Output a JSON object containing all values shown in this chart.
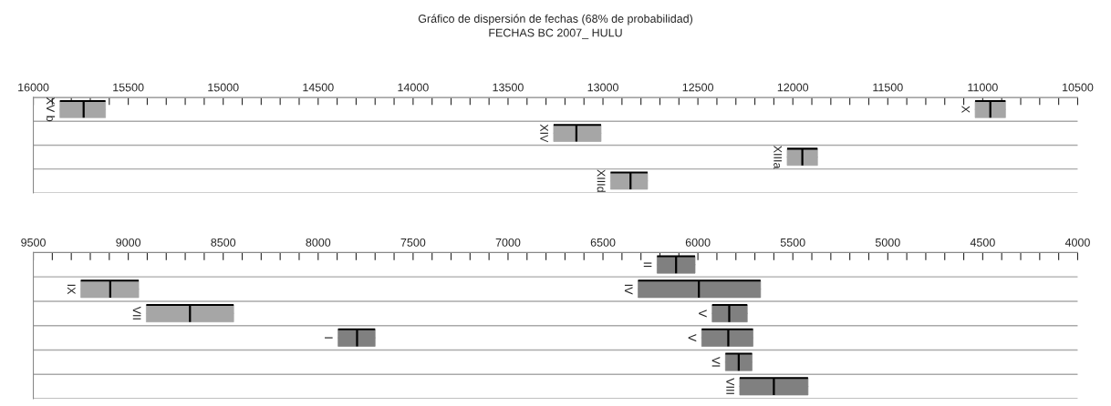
{
  "chart_data": [
    {
      "type": "box",
      "orientation": "horizontal",
      "title": "Gráfico de dispersión de fechas (68% de probabilidad)",
      "subtitle": "FECHAS BC 2007_ HULU",
      "categories": [
        null,
        null,
        null,
        null
      ],
      "series": [
        {
          "colors": [
            "#a6a6a6",
            "#a6a6a6",
            "#a6a6a6",
            "#a6a6a6"
          ],
          "value_labels": [
            "XV b",
            "XIV",
            "XIIIa",
            "XIIId"
          ],
          "boxes": [
            {
              "low": 15620,
              "q1": 15620,
              "median": 15735,
              "q3": 15860,
              "high": 15860
            },
            {
              "low": 13010,
              "q1": 13010,
              "median": 13140,
              "q3": 13260,
              "high": 13260
            },
            {
              "low": 11870,
              "q1": 11870,
              "median": 11950,
              "q3": 12030,
              "high": 12030
            },
            {
              "low": 12765,
              "q1": 12765,
              "median": 12855,
              "q3": 12960,
              "high": 12960
            }
          ]
        },
        {
          "colors": [
            "#a6a6a6",
            null,
            null,
            null
          ],
          "value_labels": [
            "X",
            null,
            null,
            null
          ],
          "boxes": [
            {
              "low": 10880,
              "q1": 10880,
              "median": 10960,
              "q3": 11040,
              "high": 11040
            },
            null,
            null,
            null
          ]
        }
      ],
      "xlim": [
        16000,
        10500
      ],
      "xticks": [
        16000,
        {
          "value": 15900,
          "label": null
        },
        {
          "value": 15800,
          "label": null
        },
        {
          "value": 15700,
          "label": null
        },
        {
          "value": 15600,
          "label": null
        },
        15500,
        {
          "value": 15400,
          "label": null
        },
        {
          "value": 15300,
          "label": null
        },
        {
          "value": 15200,
          "label": null
        },
        {
          "value": 15100,
          "label": null
        },
        15000,
        {
          "value": 14900,
          "label": null
        },
        {
          "value": 14800,
          "label": null
        },
        {
          "value": 14700,
          "label": null
        },
        {
          "value": 14600,
          "label": null
        },
        14500,
        {
          "value": 14400,
          "label": null
        },
        {
          "value": 14300,
          "label": null
        },
        {
          "value": 14200,
          "label": null
        },
        {
          "value": 14100,
          "label": null
        },
        14000,
        {
          "value": 13900,
          "label": null
        },
        {
          "value": 13800,
          "label": null
        },
        {
          "value": 13700,
          "label": null
        },
        {
          "value": 13600,
          "label": null
        },
        13500,
        {
          "value": 13400,
          "label": null
        },
        {
          "value": 13300,
          "label": null
        },
        {
          "value": 13200,
          "label": null
        },
        {
          "value": 13100,
          "label": null
        },
        13000,
        {
          "value": 12900,
          "label": null
        },
        {
          "value": 12800,
          "label": null
        },
        {
          "value": 12700,
          "label": null
        },
        {
          "value": 12600,
          "label": null
        },
        12500,
        {
          "value": 12400,
          "label": null
        },
        {
          "value": 12300,
          "label": null
        },
        {
          "value": 12200,
          "label": null
        },
        {
          "value": 12100,
          "label": null
        },
        12000,
        {
          "value": 11900,
          "label": null
        },
        {
          "value": 11800,
          "label": null
        },
        {
          "value": 11700,
          "label": null
        },
        {
          "value": 11600,
          "label": null
        },
        11500,
        {
          "value": 11400,
          "label": null
        },
        {
          "value": 11300,
          "label": null
        },
        {
          "value": 11200,
          "label": null
        },
        {
          "value": 11100,
          "label": null
        },
        11000,
        {
          "value": 10900,
          "label": null
        },
        {
          "value": 10800,
          "label": null
        },
        {
          "value": 10700,
          "label": null
        },
        {
          "value": 10600,
          "label": null
        },
        10500
      ],
      "grid": "y",
      "tick_labels": "x"
    },
    {
      "type": "box",
      "orientation": "horizontal",
      "categories": [
        null,
        null,
        null,
        null,
        null,
        null
      ],
      "series": [
        {
          "colors": [
            null,
            "#a6a6a6",
            "#a6a6a6",
            "#808080",
            null,
            null
          ],
          "value_labels": [
            null,
            "IX",
            "VII",
            "I",
            null,
            null
          ],
          "boxes": [
            null,
            {
              "low": 8945,
              "q1": 8945,
              "median": 9095,
              "q3": 9250,
              "high": 9250
            },
            {
              "low": 8445,
              "q1": 8445,
              "median": 8675,
              "q3": 8905,
              "high": 8905
            },
            {
              "low": 7700,
              "q1": 7700,
              "median": 7795,
              "q3": 7895,
              "high": 7895
            },
            null,
            null
          ]
        },
        {
          "colors": [
            "#808080",
            "#808080",
            "#808080",
            "#808080",
            "#808080",
            "#808080"
          ],
          "value_labels": [
            "II",
            "IV",
            "V",
            "V",
            "VI",
            "VIII"
          ],
          "boxes": [
            {
              "low": 6015,
              "q1": 6015,
              "median": 6115,
              "q3": 6215,
              "high": 6215
            },
            {
              "low": 5670,
              "q1": 5670,
              "median": 5995,
              "q3": 6315,
              "high": 6315
            },
            {
              "low": 5740,
              "q1": 5740,
              "median": 5835,
              "q3": 5925,
              "high": 5925
            },
            {
              "low": 5710,
              "q1": 5710,
              "median": 5840,
              "q3": 5980,
              "high": 5980
            },
            {
              "low": 5715,
              "q1": 5715,
              "median": 5785,
              "q3": 5855,
              "high": 5855
            },
            {
              "low": 5420,
              "q1": 5420,
              "median": 5600,
              "q3": 5780,
              "high": 5780
            }
          ]
        }
      ],
      "xlim": [
        9500,
        4000
      ],
      "xticks": [
        9500,
        {
          "value": 9400,
          "label": null
        },
        {
          "value": 9300,
          "label": null
        },
        {
          "value": 9200,
          "label": null
        },
        {
          "value": 9100,
          "label": null
        },
        9000,
        {
          "value": 8900,
          "label": null
        },
        {
          "value": 8800,
          "label": null
        },
        {
          "value": 8700,
          "label": null
        },
        {
          "value": 8600,
          "label": null
        },
        8500,
        {
          "value": 8400,
          "label": null
        },
        {
          "value": 8300,
          "label": null
        },
        {
          "value": 8200,
          "label": null
        },
        {
          "value": 8100,
          "label": null
        },
        8000,
        {
          "value": 7900,
          "label": null
        },
        {
          "value": 7800,
          "label": null
        },
        {
          "value": 7700,
          "label": null
        },
        {
          "value": 7600,
          "label": null
        },
        7500,
        {
          "value": 7400,
          "label": null
        },
        {
          "value": 7300,
          "label": null
        },
        {
          "value": 7200,
          "label": null
        },
        {
          "value": 7100,
          "label": null
        },
        7000,
        {
          "value": 6900,
          "label": null
        },
        {
          "value": 6800,
          "label": null
        },
        {
          "value": 6700,
          "label": null
        },
        {
          "value": 6600,
          "label": null
        },
        6500,
        {
          "value": 6400,
          "label": null
        },
        {
          "value": 6300,
          "label": null
        },
        {
          "value": 6200,
          "label": null
        },
        {
          "value": 6100,
          "label": null
        },
        6000,
        {
          "value": 5900,
          "label": null
        },
        {
          "value": 5800,
          "label": null
        },
        {
          "value": 5700,
          "label": null
        },
        {
          "value": 5600,
          "label": null
        },
        5500,
        {
          "value": 5400,
          "label": null
        },
        {
          "value": 5300,
          "label": null
        },
        {
          "value": 5200,
          "label": null
        },
        {
          "value": 5100,
          "label": null
        },
        5000,
        {
          "value": 4900,
          "label": null
        },
        {
          "value": 4800,
          "label": null
        },
        {
          "value": 4700,
          "label": null
        },
        {
          "value": 4600,
          "label": null
        },
        4500,
        {
          "value": 4400,
          "label": null
        },
        {
          "value": 4300,
          "label": null
        },
        {
          "value": 4200,
          "label": null
        },
        {
          "value": 4100,
          "label": null
        },
        4000
      ],
      "grid": "y",
      "tick_labels": "x"
    }
  ]
}
